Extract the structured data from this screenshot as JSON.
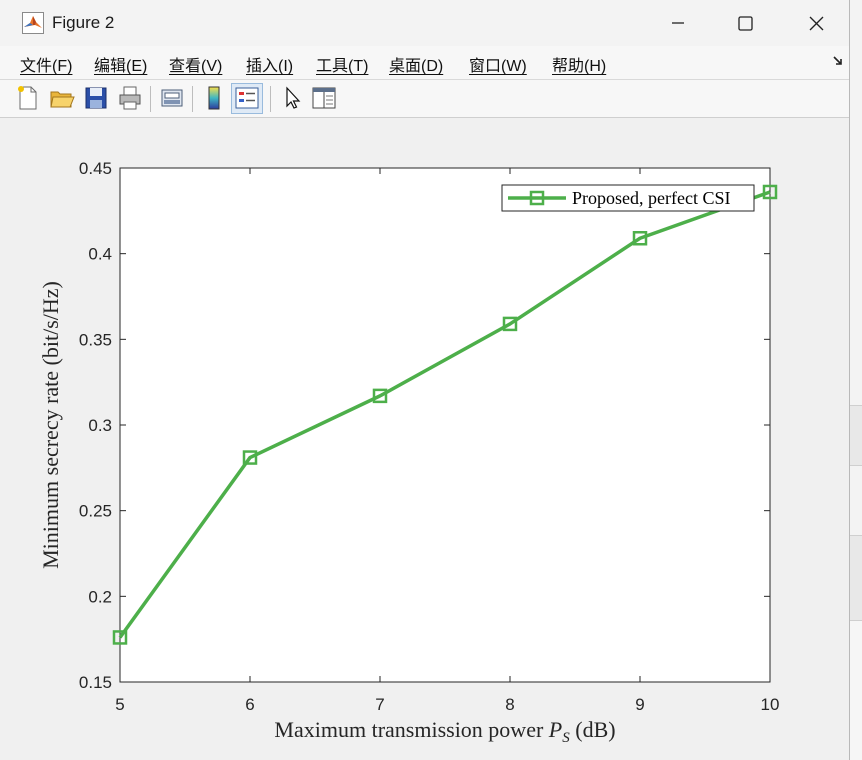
{
  "window": {
    "title": "Figure 2"
  },
  "menu": {
    "items": [
      {
        "label": "文件(F)",
        "name": "menu-file"
      },
      {
        "label": "编辑(E)",
        "name": "menu-edit"
      },
      {
        "label": "查看(V)",
        "name": "menu-view"
      },
      {
        "label": "插入(I)",
        "name": "menu-insert"
      },
      {
        "label": "工具(T)",
        "name": "menu-tools"
      },
      {
        "label": "桌面(D)",
        "name": "menu-desktop"
      },
      {
        "label": "窗口(W)",
        "name": "menu-window"
      },
      {
        "label": "帮助(H)",
        "name": "menu-help"
      }
    ]
  },
  "toolbar": {
    "icons": [
      "new-figure-icon",
      "open-folder-icon",
      "save-icon",
      "print-icon",
      "print-preview-icon",
      "colorbar-icon",
      "legend-icon",
      "pointer-icon",
      "property-inspector-icon"
    ]
  },
  "colors": {
    "series": "#4daf4a",
    "accent": "#0078d4"
  },
  "chart_data": {
    "type": "line",
    "title": "",
    "xlabel": "Maximum transmission power P_S (dB)",
    "xlabel_parts": [
      "Maximum transmission power ",
      "P",
      "S",
      " (dB)"
    ],
    "ylabel": "Minimum secrecy rate (bit/s/Hz)",
    "xlim": [
      5,
      10
    ],
    "ylim": [
      0.15,
      0.45
    ],
    "xticks": [
      5,
      6,
      7,
      8,
      9,
      10
    ],
    "yticks": [
      0.15,
      0.2,
      0.25,
      0.3,
      0.35,
      0.4,
      0.45
    ],
    "xtick_labels": [
      "5",
      "6",
      "7",
      "8",
      "9",
      "10"
    ],
    "ytick_labels": [
      "0.15",
      "0.2",
      "0.25",
      "0.3",
      "0.35",
      "0.4",
      "0.45"
    ],
    "grid": false,
    "legend_position": "top-right",
    "series": [
      {
        "name": "Proposed, perfect CSI",
        "marker": "square",
        "color": "#4daf4a",
        "x": [
          5,
          6,
          7,
          8,
          9,
          10
        ],
        "y": [
          0.176,
          0.281,
          0.317,
          0.359,
          0.409,
          0.436
        ]
      }
    ]
  }
}
